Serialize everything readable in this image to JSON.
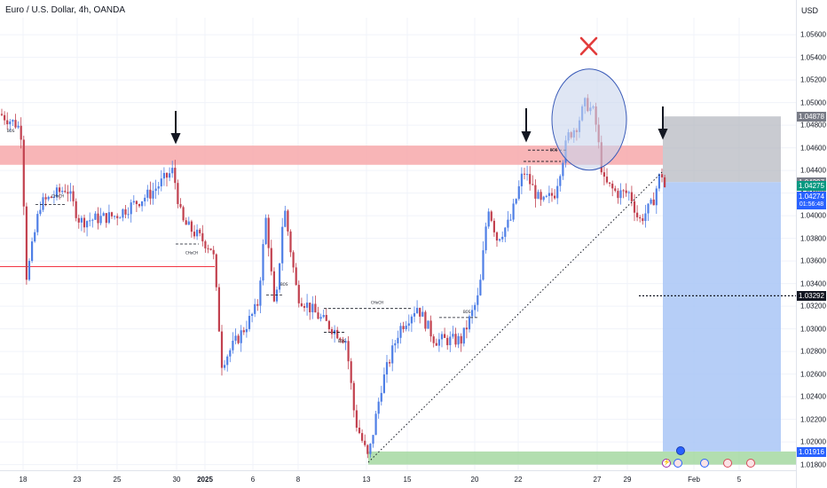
{
  "title": "Euro / U.S. Dollar, 4h, OANDA",
  "currency": "USD",
  "colors": {
    "bull": "#4f7fe6",
    "bear": "#c2414f",
    "resistance_zone": "#f7a8aa",
    "stop_zone": "#b2b5be",
    "target_zone": "#a9c6f6",
    "support_zone": "#9fd69b",
    "level_line": "#f23645",
    "annotation": "#131722",
    "ellipse_fill": "#c9d6ec",
    "ellipse_stroke": "#3a5bb8",
    "x_mark": "#e23b3b"
  },
  "icons": [
    "down-arrow-icon",
    "down-arrow-icon",
    "down-arrow-icon",
    "x-mark-icon",
    "calendar-event-icon"
  ],
  "chart_data": {
    "type": "candlestick",
    "instrument": "Euro / U.S. Dollar",
    "timeframe": "4h",
    "y_ticks": [
      "1.05600",
      "1.05400",
      "1.05200",
      "1.05000",
      "1.04800",
      "1.04600",
      "1.04400",
      "1.04200",
      "1.04000",
      "1.03800",
      "1.03600",
      "1.03400",
      "1.03200",
      "1.03000",
      "1.02800",
      "1.02600",
      "1.02400",
      "1.02200",
      "1.02000",
      "1.01800"
    ],
    "ylim": [
      1.0175,
      1.0575
    ],
    "x_ticks": [
      {
        "label": "18",
        "bold": false
      },
      {
        "label": "23",
        "bold": false
      },
      {
        "label": "25",
        "bold": false
      },
      {
        "label": "30",
        "bold": false
      },
      {
        "label": "2025",
        "bold": true
      },
      {
        "label": "6",
        "bold": false
      },
      {
        "label": "8",
        "bold": false
      },
      {
        "label": "13",
        "bold": false
      },
      {
        "label": "15",
        "bold": false
      },
      {
        "label": "20",
        "bold": false
      },
      {
        "label": "22",
        "bold": false
      },
      {
        "label": "27",
        "bold": false
      },
      {
        "label": "29",
        "bold": false
      },
      {
        "label": "Feb",
        "bold": false
      },
      {
        "label": "5",
        "bold": false
      }
    ],
    "price_tags": [
      {
        "label": "1.04878",
        "value": 1.04878,
        "color": "#787b86"
      },
      {
        "label": "1.04297",
        "value": 1.04297,
        "color": "#787b86"
      },
      {
        "label": "1.04275",
        "value": 1.04265,
        "color": "#089981"
      },
      {
        "label": "1.04274",
        "value": 1.0417,
        "color": "#2962ff",
        "extra": "01:56:48"
      },
      {
        "label": "1.03292",
        "value": 1.03292,
        "color": "#131722"
      },
      {
        "label": "1.01916",
        "value": 1.01916,
        "color": "#2962ff"
      }
    ],
    "resistance_zone": [
      1.0445,
      1.0462
    ],
    "support_zone": [
      1.018,
      1.01916
    ],
    "stop_zone": [
      1.04297,
      1.04878
    ],
    "target_zone": [
      1.01916,
      1.04297
    ],
    "level_line": 1.0355,
    "target_level": 1.03292,
    "annotations": [
      "BOS",
      "CHoCH",
      "CHoCH",
      "BOS",
      "CHoCH",
      "BOS",
      "BOS",
      "BOS"
    ],
    "event_badges": [
      "⚡"
    ]
  }
}
